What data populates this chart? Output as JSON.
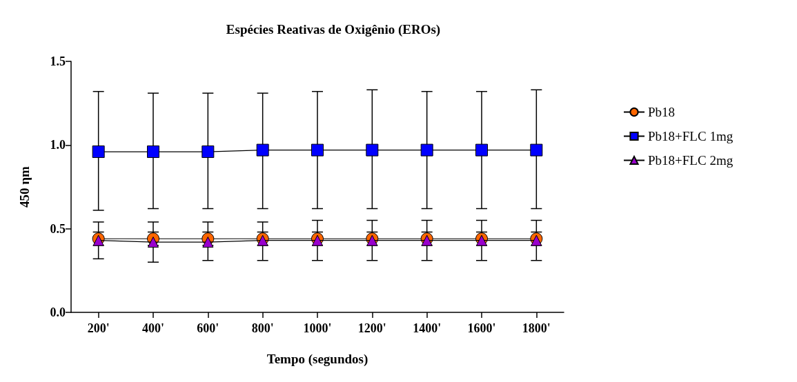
{
  "chart_data": {
    "type": "line",
    "title": "Espécies Reativas de Oxigênio (EROs)",
    "xlabel": "Tempo (segundos)",
    "ylabel": "450 ηm",
    "categories": [
      "200'",
      "400'",
      "600'",
      "800'",
      "1000'",
      "1200'",
      "1400'",
      "1600'",
      "1800'"
    ],
    "series": [
      {
        "name": "Pb18",
        "color": "#ff6600",
        "marker": "circle",
        "values": [
          0.44,
          0.44,
          0.44,
          0.44,
          0.44,
          0.44,
          0.44,
          0.44,
          0.44
        ],
        "errors": [
          0.04,
          0.04,
          0.04,
          0.04,
          0.04,
          0.04,
          0.04,
          0.04,
          0.04
        ]
      },
      {
        "name": "Pb18+FLC 1mg",
        "color": "#0000ff",
        "marker": "square",
        "values": [
          0.96,
          0.96,
          0.96,
          0.97,
          0.97,
          0.97,
          0.97,
          0.97,
          0.97
        ],
        "errors": [
          [
            0.61,
            1.32
          ],
          [
            0.62,
            1.31
          ],
          [
            0.62,
            1.31
          ],
          [
            0.62,
            1.31
          ],
          [
            0.62,
            1.32
          ],
          [
            0.62,
            1.33
          ],
          [
            0.62,
            1.32
          ],
          [
            0.62,
            1.32
          ],
          [
            0.62,
            1.33
          ]
        ]
      },
      {
        "name": "Pb18+FLC 2mg",
        "color": "#9900cc",
        "marker": "triangle",
        "values": [
          0.43,
          0.42,
          0.42,
          0.43,
          0.43,
          0.43,
          0.43,
          0.43,
          0.43
        ],
        "errors": [
          [
            0.32,
            0.54
          ],
          [
            0.3,
            0.54
          ],
          [
            0.31,
            0.54
          ],
          [
            0.31,
            0.54
          ],
          [
            0.31,
            0.55
          ],
          [
            0.31,
            0.55
          ],
          [
            0.31,
            0.55
          ],
          [
            0.31,
            0.55
          ],
          [
            0.31,
            0.55
          ]
        ]
      }
    ],
    "ylim": [
      0,
      1.5
    ],
    "yticks": [
      {
        "value": 0,
        "label": "0.0"
      },
      {
        "value": 0.5,
        "label": "0.5"
      },
      {
        "value": 1,
        "label": "1.0"
      },
      {
        "value": 1.5,
        "label": "1.5"
      }
    ],
    "grid": false,
    "legend": "right",
    "line_style": "solid"
  }
}
